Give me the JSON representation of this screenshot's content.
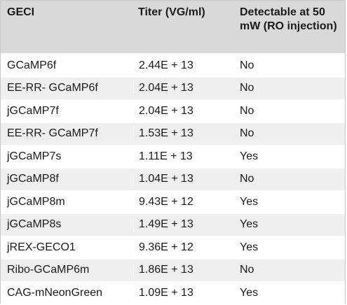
{
  "table": {
    "headers": [
      "GECI",
      "Titer (VG/ml)",
      "Detectable at 50 mW (RO injection)"
    ],
    "rows": [
      [
        "GCaMP6f",
        "2.44E + 13",
        "No"
      ],
      [
        "EE-RR- GCaMP6f",
        "2.04E + 13",
        "No"
      ],
      [
        "jGCaMP7f",
        "2.04E + 13",
        "No"
      ],
      [
        "EE-RR- GCaMP7f",
        "1.53E + 13",
        "No"
      ],
      [
        "jGCaMP7s",
        "1.11E + 13",
        "Yes"
      ],
      [
        "jGCaMP8f",
        "1.04E + 13",
        "No"
      ],
      [
        "jGCaMP8m",
        "9.43E + 12",
        "Yes"
      ],
      [
        "jGCaMP8s",
        "1.49E + 13",
        "Yes"
      ],
      [
        "jREX-GECO1",
        "9.36E + 12",
        "Yes"
      ],
      [
        "Ribo-GCaMP6m",
        "1.86E + 13",
        "No"
      ],
      [
        "CAG-mNeonGreen",
        "1.09E + 13",
        "Yes"
      ]
    ]
  },
  "colors": {
    "header_bg": "#d9d9d9",
    "row_alt_bg": "#efefef",
    "text": "#1a1a1a"
  }
}
